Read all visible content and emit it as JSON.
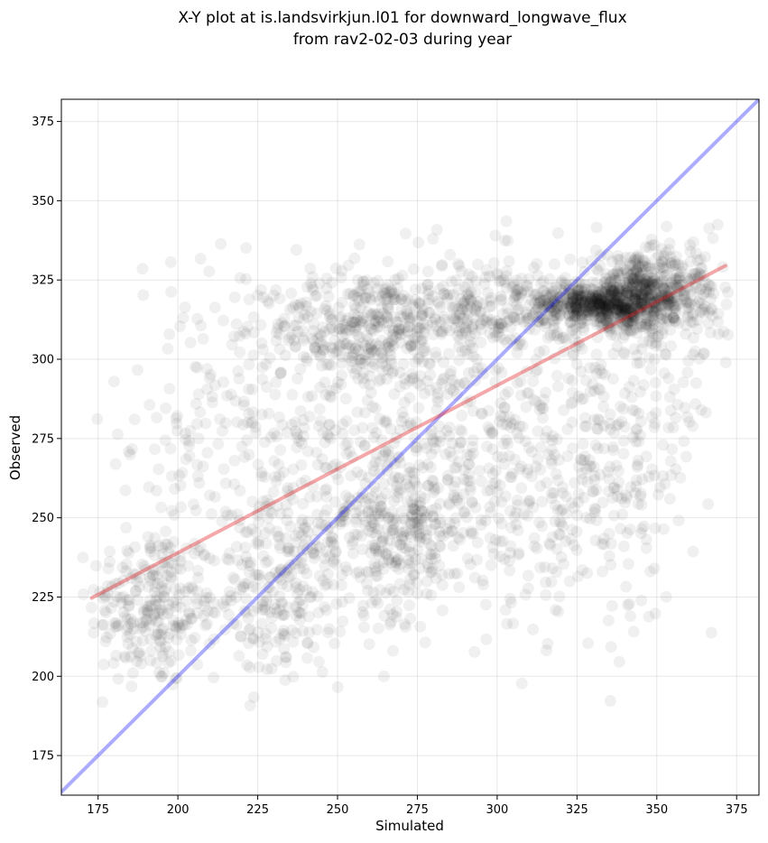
{
  "chart_data": {
    "type": "scatter",
    "title_lines": [
      "X-Y plot at is.landsvirkjun.l01 for downward_longwave_flux",
      "from rav2-02-03 during year"
    ],
    "xlabel": "Simulated",
    "ylabel": "Observed",
    "xlim": [
      163.5,
      382
    ],
    "ylim": [
      162.5,
      382
    ],
    "xticks": [
      175,
      200,
      225,
      250,
      275,
      300,
      325,
      350,
      375
    ],
    "yticks": [
      175,
      200,
      225,
      250,
      275,
      300,
      325,
      350,
      375
    ],
    "grid": true,
    "point_color": "#000000",
    "point_alpha": 0.06,
    "one_to_one_line": {
      "color": "#0000ff",
      "alpha": 0.33,
      "x": [
        163.5,
        382
      ],
      "y": [
        163.5,
        382
      ]
    },
    "fit_line": {
      "color": "#e31a1c",
      "alpha": 0.38,
      "x": [
        173,
        371.5
      ],
      "y": [
        224.7,
        329.5
      ]
    },
    "clusters": [
      {
        "x": 192,
        "y": 222,
        "sx": 10,
        "sy": 13,
        "n": 260
      },
      {
        "x": 210,
        "y": 280,
        "sx": 14,
        "sy": 28,
        "n": 120
      },
      {
        "x": 232,
        "y": 226,
        "sx": 10,
        "sy": 14,
        "n": 220
      },
      {
        "x": 240,
        "y": 275,
        "sx": 18,
        "sy": 25,
        "n": 220
      },
      {
        "x": 258,
        "y": 310,
        "sx": 14,
        "sy": 9,
        "n": 320
      },
      {
        "x": 268,
        "y": 248,
        "sx": 12,
        "sy": 14,
        "n": 340
      },
      {
        "x": 292,
        "y": 280,
        "sx": 18,
        "sy": 24,
        "n": 260
      },
      {
        "x": 298,
        "y": 316,
        "sx": 16,
        "sy": 8,
        "n": 280
      },
      {
        "x": 330,
        "y": 317,
        "sx": 10,
        "sy": 3,
        "n": 420
      },
      {
        "x": 345,
        "y": 320,
        "sx": 9,
        "sy": 6,
        "n": 560
      },
      {
        "x": 335,
        "y": 280,
        "sx": 16,
        "sy": 22,
        "n": 260
      },
      {
        "x": 315,
        "y": 245,
        "sx": 20,
        "sy": 15,
        "n": 160
      },
      {
        "x": 362,
        "y": 322,
        "sx": 5,
        "sy": 12,
        "n": 80
      }
    ]
  }
}
